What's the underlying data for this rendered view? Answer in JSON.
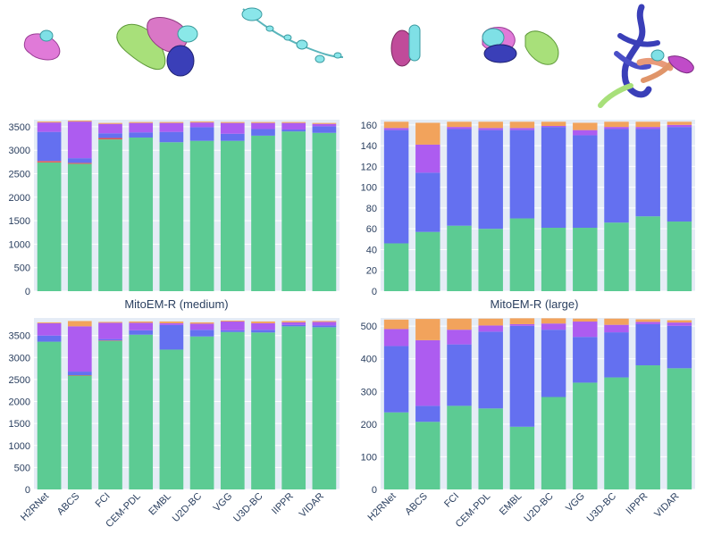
{
  "colors": {
    "green": "#5ccb93",
    "blue": "#6470f0",
    "purple": "#ad5cf0",
    "orange": "#f2a35c",
    "red": "#e8584f",
    "plot_bg": "#e5ecf6",
    "grid": "#ffffff",
    "tick_text": "#2a3f5f"
  },
  "illustrations": [
    {
      "name": "small-mitochondria-render",
      "shapes": [
        "pink-blob",
        "cyan-blob"
      ]
    },
    {
      "name": "cluster-mitochondria-render",
      "shapes": [
        "green-blob",
        "pink-blob",
        "cyan-blob",
        "navy-blob"
      ]
    },
    {
      "name": "chain-mitochondria-render",
      "shapes": [
        "cyan-beaded-chain"
      ]
    },
    {
      "name": "pair-mitochondria-render",
      "shapes": [
        "magenta-blob",
        "cyan-blob"
      ]
    },
    {
      "name": "group-mitochondria-render",
      "shapes": [
        "cyan-blob",
        "pink-blob",
        "navy-blob",
        "green-blob"
      ]
    },
    {
      "name": "network-mitochondria-render",
      "shapes": [
        "navy-tubes",
        "orange-tubes",
        "green-tube",
        "magenta-blob"
      ]
    }
  ],
  "chart_data": [
    {
      "type": "bar",
      "stacked": true,
      "categories": [
        "H2RNet",
        "ABCS",
        "FCI",
        "CEM-PDL",
        "EMBL",
        "U2D-BC",
        "VGG",
        "U3D-BC",
        "IIPPR",
        "VIDAR"
      ],
      "series": [
        {
          "color": "green",
          "values": [
            2740,
            2710,
            3230,
            3270,
            3170,
            3200,
            3200,
            3310,
            3400,
            3370
          ]
        },
        {
          "color": "red",
          "values": [
            30,
            20,
            30,
            0,
            0,
            0,
            0,
            0,
            0,
            0
          ]
        },
        {
          "color": "blue",
          "values": [
            620,
            100,
            100,
            110,
            220,
            290,
            150,
            140,
            40,
            140
          ]
        },
        {
          "color": "purple",
          "values": [
            200,
            780,
            200,
            200,
            190,
            100,
            230,
            130,
            140,
            50
          ]
        },
        {
          "color": "orange",
          "values": [
            20,
            20,
            20,
            20,
            20,
            20,
            20,
            20,
            20,
            20
          ]
        }
      ],
      "ylim": [
        0,
        3650
      ],
      "yticks": [
        0,
        500,
        1000,
        1500,
        2000,
        2500,
        3000,
        3500
      ],
      "ytick_labels": [
        "0",
        "500",
        "1000",
        "1500",
        "2000",
        "2500",
        "3000",
        "3500"
      ],
      "show_xticks": false,
      "title": "MitoEM-R (medium)"
    },
    {
      "type": "bar",
      "stacked": true,
      "categories": [
        "H2RNet",
        "ABCS",
        "FCI",
        "CEM-PDL",
        "EMBL",
        "U2D-BC",
        "VGG",
        "U3D-BC",
        "IIPPR",
        "VIDAR"
      ],
      "series": [
        {
          "color": "green",
          "values": [
            46,
            57,
            63,
            60,
            70,
            61,
            61,
            66,
            72,
            67
          ]
        },
        {
          "color": "blue",
          "values": [
            109,
            57,
            93,
            95,
            85,
            97,
            89,
            90,
            84,
            91
          ]
        },
        {
          "color": "purple",
          "values": [
            2,
            27,
            2,
            2,
            2,
            1,
            5,
            2,
            2,
            2
          ]
        },
        {
          "color": "orange",
          "values": [
            6,
            21,
            5,
            6,
            6,
            4,
            7,
            5,
            5,
            3
          ]
        }
      ],
      "ylim": [
        0,
        165
      ],
      "yticks": [
        0,
        20,
        40,
        60,
        80,
        100,
        120,
        140,
        160
      ],
      "ytick_labels": [
        "0",
        "20",
        "40",
        "60",
        "80",
        "100",
        "120",
        "140",
        "160"
      ],
      "show_xticks": false,
      "title": "MitoEM-R (large)"
    },
    {
      "type": "bar",
      "stacked": true,
      "categories": [
        "H2RNet",
        "ABCS",
        "FCI",
        "CEM-PDL",
        "EMBL",
        "U2D-BC",
        "VGG",
        "U3D-BC",
        "IIPPR",
        "VIDAR"
      ],
      "series": [
        {
          "color": "green",
          "values": [
            3360,
            2590,
            3380,
            3520,
            3180,
            3480,
            3580,
            3570,
            3710,
            3690
          ]
        },
        {
          "color": "red",
          "values": [
            0,
            10,
            10,
            0,
            0,
            0,
            0,
            0,
            0,
            0
          ]
        },
        {
          "color": "blue",
          "values": [
            140,
            80,
            30,
            100,
            560,
            150,
            40,
            60,
            30,
            40
          ]
        },
        {
          "color": "purple",
          "values": [
            280,
            1030,
            370,
            170,
            40,
            140,
            200,
            150,
            60,
            80
          ]
        },
        {
          "color": "orange",
          "values": [
            20,
            120,
            20,
            30,
            40,
            30,
            20,
            40,
            30,
            20
          ]
        }
      ],
      "ylim": [
        0,
        3900
      ],
      "yticks": [
        0,
        500,
        1000,
        1500,
        2000,
        2500,
        3000,
        3500
      ],
      "ytick_labels": [
        "0",
        "500",
        "1000",
        "1500",
        "2000",
        "2500",
        "3000",
        "3500"
      ],
      "show_xticks": true,
      "title": ""
    },
    {
      "type": "bar",
      "stacked": true,
      "categories": [
        "H2RNet",
        "ABCS",
        "FCI",
        "CEM-PDL",
        "EMBL",
        "U2D-BC",
        "VGG",
        "U3D-BC",
        "IIPPR",
        "VIDAR"
      ],
      "series": [
        {
          "color": "green",
          "values": [
            236,
            207,
            256,
            248,
            192,
            283,
            327,
            343,
            380,
            371
          ]
        },
        {
          "color": "blue",
          "values": [
            203,
            49,
            188,
            235,
            309,
            206,
            140,
            138,
            126,
            130
          ]
        },
        {
          "color": "purple",
          "values": [
            52,
            201,
            45,
            19,
            5,
            19,
            47,
            23,
            7,
            10
          ]
        },
        {
          "color": "orange",
          "values": [
            29,
            65,
            34,
            21,
            18,
            16,
            9,
            19,
            8,
            7
          ]
        }
      ],
      "ylim": [
        0,
        525
      ],
      "yticks": [
        0,
        100,
        200,
        300,
        400,
        500
      ],
      "ytick_labels": [
        "0",
        "100",
        "200",
        "300",
        "400",
        "500"
      ],
      "show_xticks": true,
      "title": ""
    }
  ]
}
